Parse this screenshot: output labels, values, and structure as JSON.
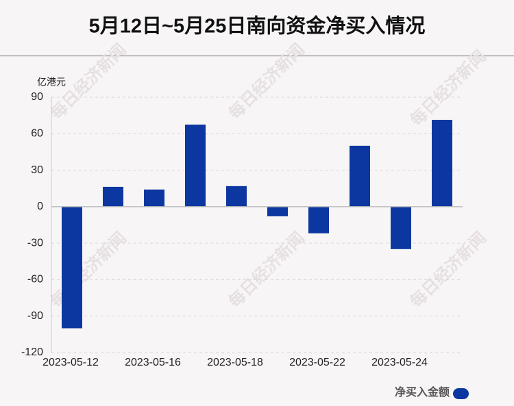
{
  "chart_data": {
    "type": "bar",
    "title": "5月12日~5月25日南向资金净买入情况",
    "y_unit": "亿港元",
    "watermark": "每日经济新闻",
    "categories": [
      "2023-05-12",
      null,
      "2023-05-16",
      null,
      "2023-05-18",
      null,
      "2023-05-22",
      null,
      "2023-05-24",
      null
    ],
    "series": [
      {
        "name": "净买入金额",
        "color": "#0d37a0",
        "values": [
          -100,
          16.3,
          14.1,
          67.5,
          16.9,
          -7.9,
          -21.9,
          50.1,
          -34.9,
          71.4
        ]
      }
    ],
    "ylim": [
      -120,
      90
    ],
    "yticks": [
      -120,
      -90,
      -60,
      -30,
      0,
      30,
      60,
      90
    ],
    "grid": true,
    "legend": "bottom-right"
  }
}
